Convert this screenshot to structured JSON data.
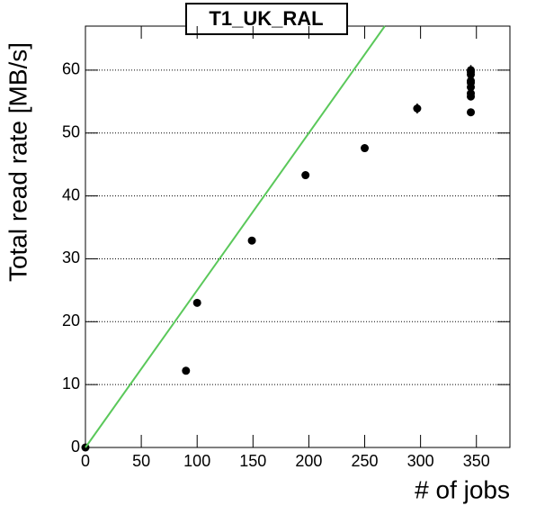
{
  "chart_data": {
    "type": "scatter",
    "title": "T1_UK_RAL",
    "xlabel": "# of jobs",
    "ylabel": "Total read rate [MB/s]",
    "xlim": [
      0,
      380
    ],
    "ylim": [
      0,
      67
    ],
    "xticks": [
      0,
      50,
      100,
      150,
      200,
      250,
      300,
      350
    ],
    "yticks": [
      0,
      10,
      20,
      30,
      40,
      50,
      60
    ],
    "grid": true,
    "series": [
      {
        "type": "scatter",
        "color": "#000000",
        "x": [
          0,
          90,
          100,
          149,
          197,
          250,
          297,
          345,
          345,
          345,
          345,
          345,
          345,
          345,
          345,
          345
        ],
        "values": [
          0,
          12.2,
          23,
          32.9,
          43.3,
          47.6,
          53.9,
          53.3,
          55.8,
          56.3,
          57.3,
          58,
          58.3,
          59.3,
          59.7,
          60
        ],
        "errors": [
          0.3,
          0.5,
          0.5,
          0.6,
          0.6,
          0.6,
          0.8,
          0.6,
          0.6,
          0.6,
          0.6,
          0.6,
          0.6,
          0.6,
          0.6,
          0.8
        ]
      },
      {
        "type": "line",
        "color": "#5ac85a",
        "x": [
          0,
          268
        ],
        "values": [
          0,
          67
        ]
      }
    ]
  }
}
